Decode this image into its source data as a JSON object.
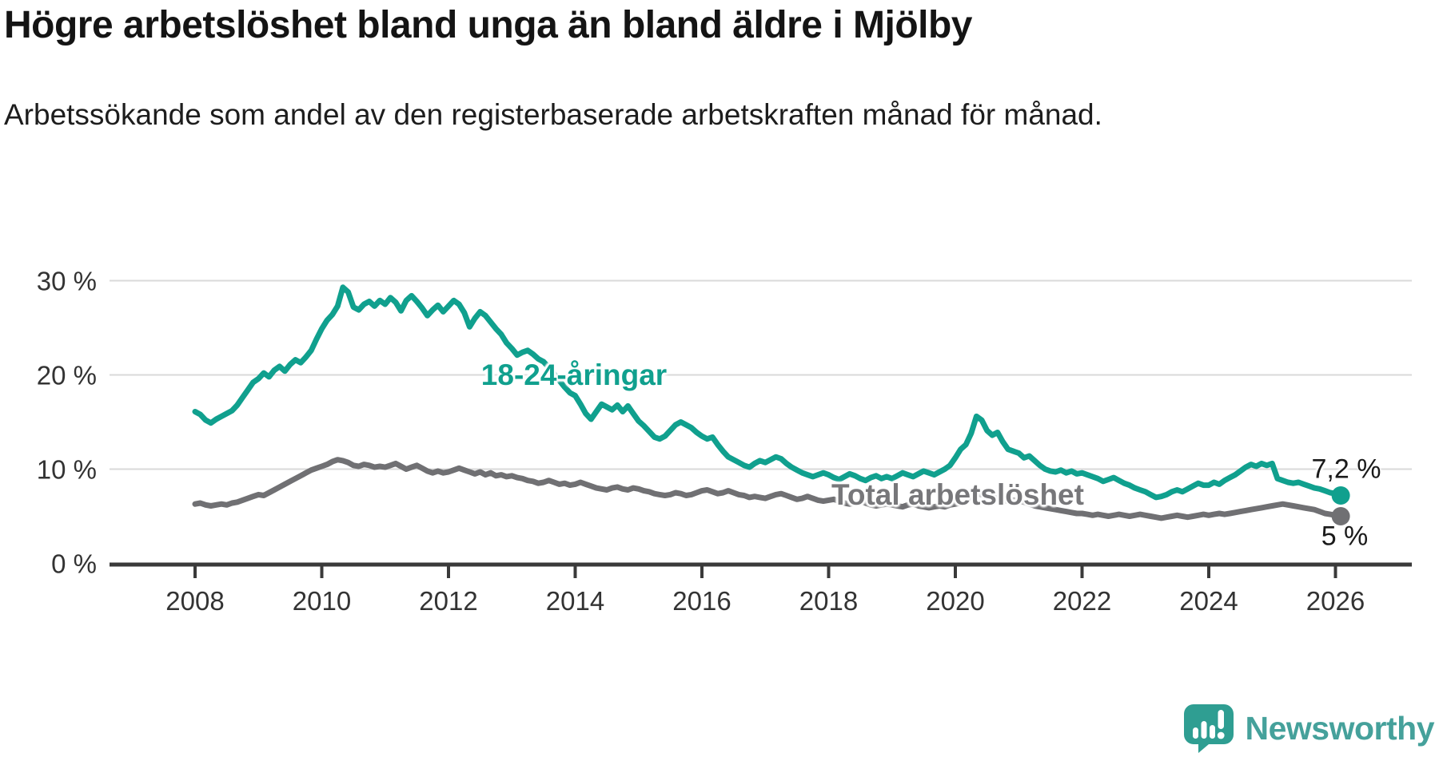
{
  "header": {
    "title": "Högre arbetslöshet bland unga än bland äldre i Mjölby",
    "subtitle": "Arbetssökande som andel av den registerbaserade arbetskraften månad för månad."
  },
  "chart_data": {
    "type": "line",
    "unit": "%",
    "x_start_year": 2008,
    "x_start_month": 1,
    "x_step_months": 1,
    "x_end_year": 2026,
    "x_end_month": 2,
    "ylim": [
      0,
      30
    ],
    "grid": "horizontal-only",
    "legend_position": "inline-labels",
    "y_gridlines": [
      10,
      20,
      30
    ],
    "y_ticks": [
      {
        "value": 0,
        "label": "0 %"
      },
      {
        "value": 10,
        "label": "10 %"
      },
      {
        "value": 20,
        "label": "20 %"
      },
      {
        "value": 30,
        "label": "30 %"
      }
    ],
    "x_ticks": [
      {
        "value": 2008,
        "label": "2008"
      },
      {
        "value": 2010,
        "label": "2010"
      },
      {
        "value": 2012,
        "label": "2012"
      },
      {
        "value": 2014,
        "label": "2014"
      },
      {
        "value": 2016,
        "label": "2016"
      },
      {
        "value": 2018,
        "label": "2018"
      },
      {
        "value": 2020,
        "label": "2020"
      },
      {
        "value": 2022,
        "label": "2022"
      },
      {
        "value": 2024,
        "label": "2024"
      },
      {
        "value": 2026,
        "label": "2026"
      }
    ],
    "gridline_color": "#d9d9d9",
    "axis_color": "#3a3a3a",
    "series": [
      {
        "id": "total",
        "label": "Total arbetslöshet",
        "color": "#707073",
        "end_label": "5 %",
        "end_value": 5.0,
        "values": [
          6.3,
          6.4,
          6.2,
          6.1,
          6.2,
          6.3,
          6.2,
          6.4,
          6.5,
          6.7,
          6.9,
          7.1,
          7.3,
          7.2,
          7.5,
          7.8,
          8.1,
          8.4,
          8.7,
          9.0,
          9.3,
          9.6,
          9.9,
          10.1,
          10.3,
          10.5,
          10.8,
          11.0,
          10.9,
          10.7,
          10.4,
          10.3,
          10.5,
          10.4,
          10.2,
          10.3,
          10.2,
          10.4,
          10.6,
          10.3,
          10.0,
          10.2,
          10.4,
          10.1,
          9.8,
          9.6,
          9.8,
          9.6,
          9.7,
          9.9,
          10.1,
          9.9,
          9.7,
          9.5,
          9.7,
          9.4,
          9.6,
          9.3,
          9.4,
          9.2,
          9.3,
          9.1,
          9.0,
          8.8,
          8.7,
          8.5,
          8.6,
          8.8,
          8.6,
          8.4,
          8.5,
          8.3,
          8.4,
          8.6,
          8.4,
          8.2,
          8.0,
          7.9,
          7.8,
          8.0,
          8.1,
          7.9,
          7.8,
          8.0,
          7.9,
          7.7,
          7.6,
          7.4,
          7.3,
          7.2,
          7.3,
          7.5,
          7.4,
          7.2,
          7.3,
          7.5,
          7.7,
          7.8,
          7.6,
          7.4,
          7.5,
          7.7,
          7.5,
          7.3,
          7.2,
          7.0,
          7.1,
          7.0,
          6.9,
          7.1,
          7.3,
          7.4,
          7.2,
          7.0,
          6.8,
          6.9,
          7.1,
          6.9,
          6.7,
          6.6,
          6.7,
          6.8,
          6.6,
          6.4,
          6.3,
          6.4,
          6.6,
          6.4,
          6.2,
          6.1,
          6.2,
          6.3,
          6.2,
          6.1,
          6.0,
          6.2,
          6.3,
          6.1,
          6.0,
          5.9,
          6.0,
          6.1,
          6.0,
          6.2,
          6.3,
          6.4,
          6.7,
          7.1,
          7.4,
          7.3,
          7.2,
          7.0,
          6.9,
          6.7,
          6.6,
          6.7,
          6.6,
          6.5,
          6.3,
          6.1,
          6.0,
          5.9,
          5.8,
          5.7,
          5.6,
          5.5,
          5.4,
          5.3,
          5.3,
          5.2,
          5.1,
          5.2,
          5.1,
          5.0,
          5.1,
          5.2,
          5.1,
          5.0,
          5.1,
          5.2,
          5.1,
          5.0,
          4.9,
          4.8,
          4.9,
          5.0,
          5.1,
          5.0,
          4.9,
          5.0,
          5.1,
          5.2,
          5.1,
          5.2,
          5.3,
          5.2,
          5.3,
          5.4,
          5.5,
          5.6,
          5.7,
          5.8,
          5.9,
          6.0,
          6.1,
          6.2,
          6.3,
          6.2,
          6.1,
          6.0,
          5.9,
          5.8,
          5.7,
          5.5,
          5.3,
          5.2,
          5.1,
          5.0
        ]
      },
      {
        "id": "youth",
        "label": "18-24-åringar",
        "color": "#10a08e",
        "end_label": "7,2 %",
        "end_value": 7.2,
        "values": [
          16.1,
          15.8,
          15.2,
          14.9,
          15.3,
          15.6,
          15.9,
          16.2,
          16.8,
          17.6,
          18.4,
          19.2,
          19.6,
          20.2,
          19.8,
          20.5,
          20.9,
          20.4,
          21.1,
          21.6,
          21.3,
          21.9,
          22.6,
          23.8,
          24.9,
          25.8,
          26.4,
          27.3,
          29.3,
          28.8,
          27.2,
          26.9,
          27.5,
          27.8,
          27.3,
          27.9,
          27.5,
          28.2,
          27.7,
          26.8,
          27.9,
          28.4,
          27.8,
          27.1,
          26.3,
          26.9,
          27.4,
          26.7,
          27.3,
          27.9,
          27.5,
          26.6,
          25.1,
          26.0,
          26.7,
          26.3,
          25.6,
          24.9,
          24.3,
          23.4,
          22.8,
          22.1,
          22.4,
          22.6,
          22.2,
          21.7,
          21.4,
          20.8,
          20.1,
          19.4,
          18.7,
          18.1,
          17.8,
          16.9,
          15.9,
          15.3,
          16.1,
          16.9,
          16.6,
          16.3,
          16.8,
          16.1,
          16.7,
          15.9,
          15.1,
          14.6,
          14.0,
          13.4,
          13.2,
          13.5,
          14.1,
          14.7,
          15.0,
          14.7,
          14.4,
          13.9,
          13.5,
          13.2,
          13.4,
          12.6,
          11.9,
          11.3,
          11.0,
          10.7,
          10.4,
          10.2,
          10.6,
          10.9,
          10.7,
          11.0,
          11.3,
          11.1,
          10.6,
          10.2,
          9.9,
          9.6,
          9.4,
          9.2,
          9.4,
          9.6,
          9.4,
          9.1,
          8.9,
          9.2,
          9.5,
          9.3,
          9.0,
          8.8,
          9.1,
          9.3,
          9.0,
          9.2,
          9.0,
          9.3,
          9.6,
          9.4,
          9.2,
          9.5,
          9.8,
          9.6,
          9.4,
          9.7,
          10.0,
          10.4,
          11.2,
          12.1,
          12.6,
          13.8,
          15.6,
          15.2,
          14.1,
          13.6,
          13.9,
          12.9,
          12.1,
          11.9,
          11.7,
          11.2,
          11.4,
          10.9,
          10.4,
          10.0,
          9.8,
          9.7,
          9.9,
          9.6,
          9.8,
          9.5,
          9.6,
          9.4,
          9.2,
          9.0,
          8.7,
          8.9,
          9.1,
          8.8,
          8.5,
          8.3,
          8.0,
          7.8,
          7.6,
          7.3,
          7.0,
          7.1,
          7.3,
          7.6,
          7.8,
          7.6,
          7.9,
          8.2,
          8.5,
          8.3,
          8.3,
          8.6,
          8.4,
          8.8,
          9.1,
          9.4,
          9.8,
          10.2,
          10.5,
          10.3,
          10.6,
          10.4,
          10.6,
          9.0,
          8.8,
          8.6,
          8.5,
          8.6,
          8.4,
          8.2,
          8.0,
          7.9,
          7.7,
          7.5,
          7.4,
          7.2
        ]
      }
    ]
  },
  "footer": {
    "brand": "Newsworthy"
  }
}
